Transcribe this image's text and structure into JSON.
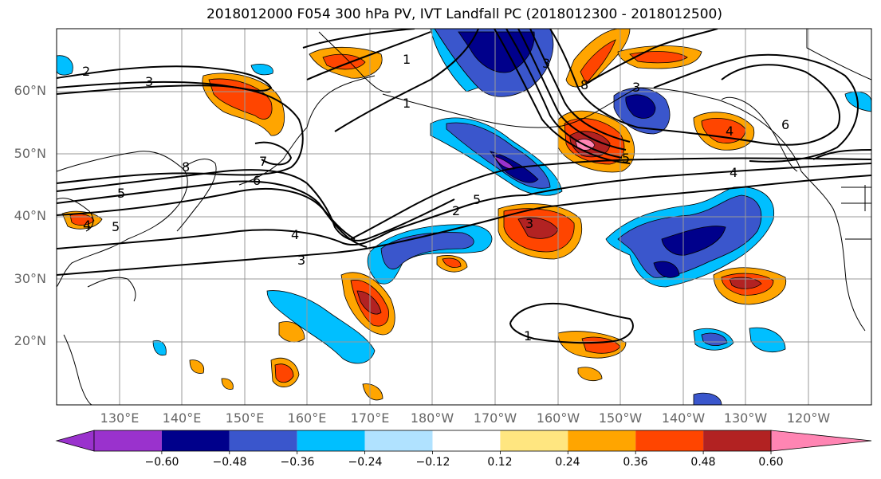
{
  "title": "2018012000 F054 300 hPa PV, IVT Landfall PC (2018012300 - 2018012500)",
  "lat_labels": [
    "60°N",
    "50°N",
    "40°N",
    "30°N",
    "20°N"
  ],
  "lon_labels": [
    "130°E",
    "140°E",
    "150°E",
    "160°E",
    "170°E",
    "180°W",
    "170°W",
    "160°W",
    "150°W",
    "140°W",
    "130°W",
    "120°W"
  ],
  "colorbar": {
    "colors": [
      "#9a32cd",
      "#00008b",
      "#3a56cc",
      "#00bfff",
      "#b0e2ff",
      "#ffffff",
      "#ffe680",
      "#ffa500",
      "#ff4500",
      "#b22222",
      "#ff85b3"
    ],
    "ticks": [
      "−0.60",
      "−0.48",
      "−0.36",
      "−0.24",
      "−0.12",
      "0.12",
      "0.24",
      "0.36",
      "0.48",
      "0.60"
    ]
  },
  "contour_labels": [
    "2",
    "3",
    "1",
    "7",
    "8",
    "6",
    "5",
    "4",
    "5",
    "4",
    "3",
    "2",
    "1",
    "3",
    "5",
    "4",
    "5",
    "6",
    "1",
    "3",
    "4",
    "3",
    "8"
  ]
}
